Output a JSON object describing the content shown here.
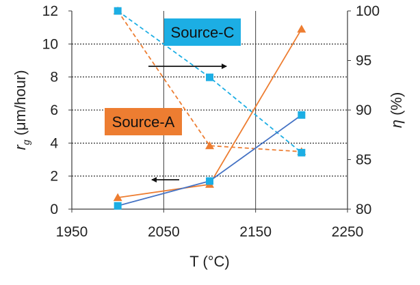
{
  "chart_data": {
    "type": "line",
    "x": [
      2000,
      2100,
      2200
    ],
    "xlabel": "T (°C)",
    "xlim": [
      1950,
      2250
    ],
    "x_ticks": [
      "1950",
      "2050",
      "2150",
      "2250"
    ],
    "ylabel_left": {
      "symbol": "r",
      "subscript": "g",
      "unit": "(μm/hour)"
    },
    "ylim_left": [
      0,
      12
    ],
    "y_ticks_left": [
      "0",
      "2",
      "4",
      "6",
      "8",
      "10",
      "12"
    ],
    "ylabel_right": {
      "symbol": "η",
      "unit": "(%)"
    },
    "ylim_right": [
      80,
      100
    ],
    "y_ticks_right": [
      "80",
      "85",
      "90",
      "95",
      "100"
    ],
    "grid": "horizontal dashed at left-axis ticks; vertical solid at 2050 and 2150",
    "series": [
      {
        "name": "Source-A",
        "axis": "left",
        "style": "solid",
        "marker": "triangle",
        "color": "#ED7D31",
        "line_color": "#ED7D31",
        "values": [
          0.7,
          1.5,
          10.9
        ]
      },
      {
        "name": "Source-C",
        "axis": "left",
        "style": "solid",
        "marker": "square",
        "color": "#1CAEE4",
        "line_color": "#4472C4",
        "values": [
          0.2,
          1.7,
          5.7
        ]
      },
      {
        "name": "Source-A",
        "axis": "right",
        "style": "dashed",
        "marker": "triangle",
        "color": "#ED7D31",
        "values": [
          100,
          86.4,
          85.8
        ]
      },
      {
        "name": "Source-C",
        "axis": "right",
        "style": "dashed",
        "marker": "square",
        "color": "#1CAEE4",
        "values": [
          100,
          93.3,
          85.7
        ]
      }
    ],
    "labels": [
      {
        "text": "Source-C",
        "background": "#1CAEE4"
      },
      {
        "text": "Source-A",
        "background": "#ED7D31"
      }
    ],
    "arrows": [
      {
        "direction": "right",
        "points_to": "right axis"
      },
      {
        "direction": "left",
        "points_to": "left axis"
      }
    ]
  }
}
